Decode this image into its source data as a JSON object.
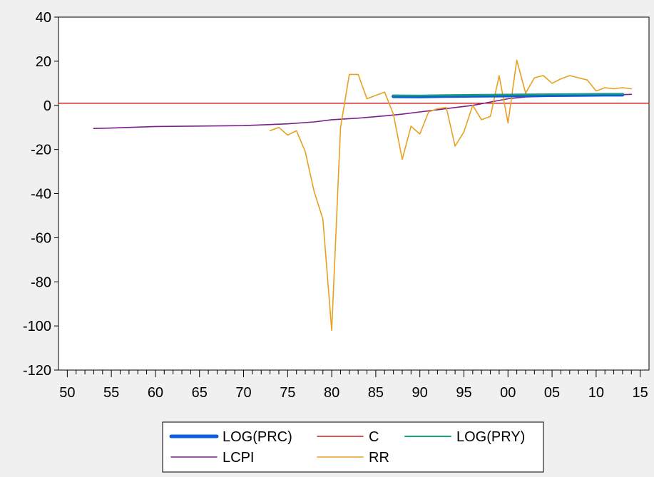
{
  "chart_data": {
    "type": "line",
    "title": "",
    "xlabel": "",
    "ylabel": "",
    "xlim": [
      1949,
      2016
    ],
    "ylim": [
      -120,
      40
    ],
    "y_ticks": [
      40,
      20,
      0,
      -20,
      -40,
      -60,
      -80,
      -100,
      -120
    ],
    "y_tick_labels": [
      "40",
      "20",
      "0",
      "-20",
      "-40",
      "-60",
      "-80",
      "-100",
      "-120"
    ],
    "x_ticks": [
      1950,
      1955,
      1960,
      1965,
      1970,
      1975,
      1980,
      1985,
      1990,
      1995,
      2000,
      2005,
      2010,
      2015
    ],
    "x_tick_labels": [
      "50",
      "55",
      "60",
      "65",
      "70",
      "75",
      "80",
      "85",
      "90",
      "95",
      "00",
      "05",
      "10",
      "15"
    ],
    "grid": false,
    "legend_position": "bottom-center",
    "colors": {
      "LOG(PRC)": "#0b5fd8",
      "C": "#cc1f1f",
      "LOG(PRY)": "#1aa36a",
      "LCPI": "#7a1f8c",
      "RR": "#e8a020"
    },
    "series": [
      {
        "name": "LOG(PRC)",
        "x": [
          1987,
          1990,
          1993,
          1996,
          1999,
          2002,
          2005,
          2008,
          2011,
          2013
        ],
        "values": [
          4.1,
          4.0,
          4.2,
          4.3,
          4.4,
          4.5,
          4.6,
          4.7,
          4.8,
          4.8
        ]
      },
      {
        "name": "C",
        "x": [
          1949,
          2016
        ],
        "values": [
          1,
          1
        ]
      },
      {
        "name": "LOG(PRY)",
        "x": [
          1987,
          1990,
          1993,
          1996,
          1999,
          2002,
          2005,
          2008,
          2011,
          2013
        ],
        "values": [
          4.4,
          4.4,
          4.6,
          4.7,
          4.8,
          4.9,
          5.0,
          5.1,
          5.2,
          5.2
        ]
      },
      {
        "name": "LCPI",
        "x": [
          1953,
          1955,
          1960,
          1965,
          1970,
          1975,
          1978,
          1980,
          1983,
          1986,
          1988,
          1990,
          1992,
          1994,
          1996,
          1998,
          2000,
          2002,
          2005,
          2008,
          2011,
          2014
        ],
        "values": [
          -10.5,
          -10.3,
          -9.6,
          -9.4,
          -9.2,
          -8.4,
          -7.5,
          -6.5,
          -5.8,
          -4.8,
          -4.0,
          -3.0,
          -2.0,
          -1.0,
          0.0,
          1.5,
          3.0,
          3.8,
          4.2,
          4.4,
          4.6,
          5.0
        ]
      },
      {
        "name": "RR",
        "x": [
          1973,
          1974,
          1975,
          1976,
          1977,
          1978,
          1979,
          1980,
          1981,
          1982,
          1983,
          1984,
          1985,
          1986,
          1987,
          1988,
          1989,
          1990,
          1991,
          1992,
          1993,
          1994,
          1995,
          1996,
          1997,
          1998,
          1999,
          2000,
          2001,
          2002,
          2003,
          2004,
          2005,
          2006,
          2007,
          2008,
          2009,
          2010,
          2011,
          2012,
          2013,
          2014
        ],
        "values": [
          -11.5,
          -10,
          -13.5,
          -11.5,
          -21,
          -39,
          -51.5,
          -102,
          -10,
          14,
          14,
          3,
          4.5,
          6,
          -4,
          -24.5,
          -9.5,
          -13,
          -3,
          -1.5,
          -1,
          -18.5,
          -12,
          0,
          -6.5,
          -5,
          13.5,
          -8,
          20.5,
          5.5,
          12.5,
          13.5,
          10,
          12,
          13.5,
          12.5,
          11.5,
          6.5,
          8,
          7.5,
          8,
          7.5
        ]
      }
    ],
    "legend_rows": [
      [
        "LOG(PRC)",
        "C",
        "LOG(PRY)"
      ],
      [
        "LCPI",
        "RR"
      ]
    ]
  }
}
